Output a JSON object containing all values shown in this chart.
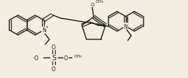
{
  "bg_color": "#f2ede0",
  "line_color": "#1a1a1a",
  "lw": 1.05,
  "lw2": 0.85,
  "figsize": [
    2.73,
    1.15
  ],
  "dpi": 100,
  "xlim": [
    0,
    273
  ],
  "ylim": [
    0,
    115
  ]
}
